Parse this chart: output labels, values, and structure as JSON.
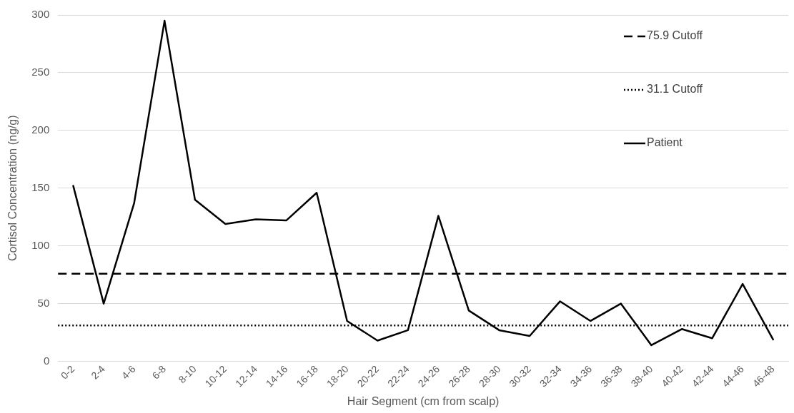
{
  "chart_data": {
    "type": "line",
    "xlabel": "Hair Segment (cm from scalp)",
    "ylabel": "Cortisol Concentration (ng/g)",
    "categories": [
      "0-2",
      "2-4",
      "4-6",
      "6-8",
      "8-10",
      "10-12",
      "12-14",
      "14-16",
      "16-18",
      "18-20",
      "20-22",
      "22-24",
      "24-26",
      "26-28",
      "28-30",
      "30-32",
      "32-34",
      "34-36",
      "36-38",
      "38-40",
      "40-42",
      "42-44",
      "44-46",
      "46-48"
    ],
    "series": [
      {
        "name": "Patient",
        "color": "#000000",
        "line_style": "solid",
        "values": [
          152,
          50,
          137,
          295,
          140,
          119,
          123,
          122,
          146,
          35,
          18,
          27,
          126,
          44,
          27,
          22,
          52,
          35,
          50,
          14,
          28,
          20,
          67,
          19
        ]
      }
    ],
    "ref_lines": [
      {
        "axis": "y",
        "value": 75.9,
        "label": "75.9 Cutoff",
        "color": "#000000",
        "line_style": "dashed"
      },
      {
        "axis": "y",
        "value": 31.1,
        "label": "31.1 Cutoff",
        "color": "#000000",
        "line_style": "dotted"
      }
    ],
    "ylim": [
      0,
      300
    ],
    "yticks": [
      0,
      50,
      100,
      150,
      200,
      250,
      300
    ],
    "grid": "y",
    "legend": "top right",
    "marker": "none"
  }
}
